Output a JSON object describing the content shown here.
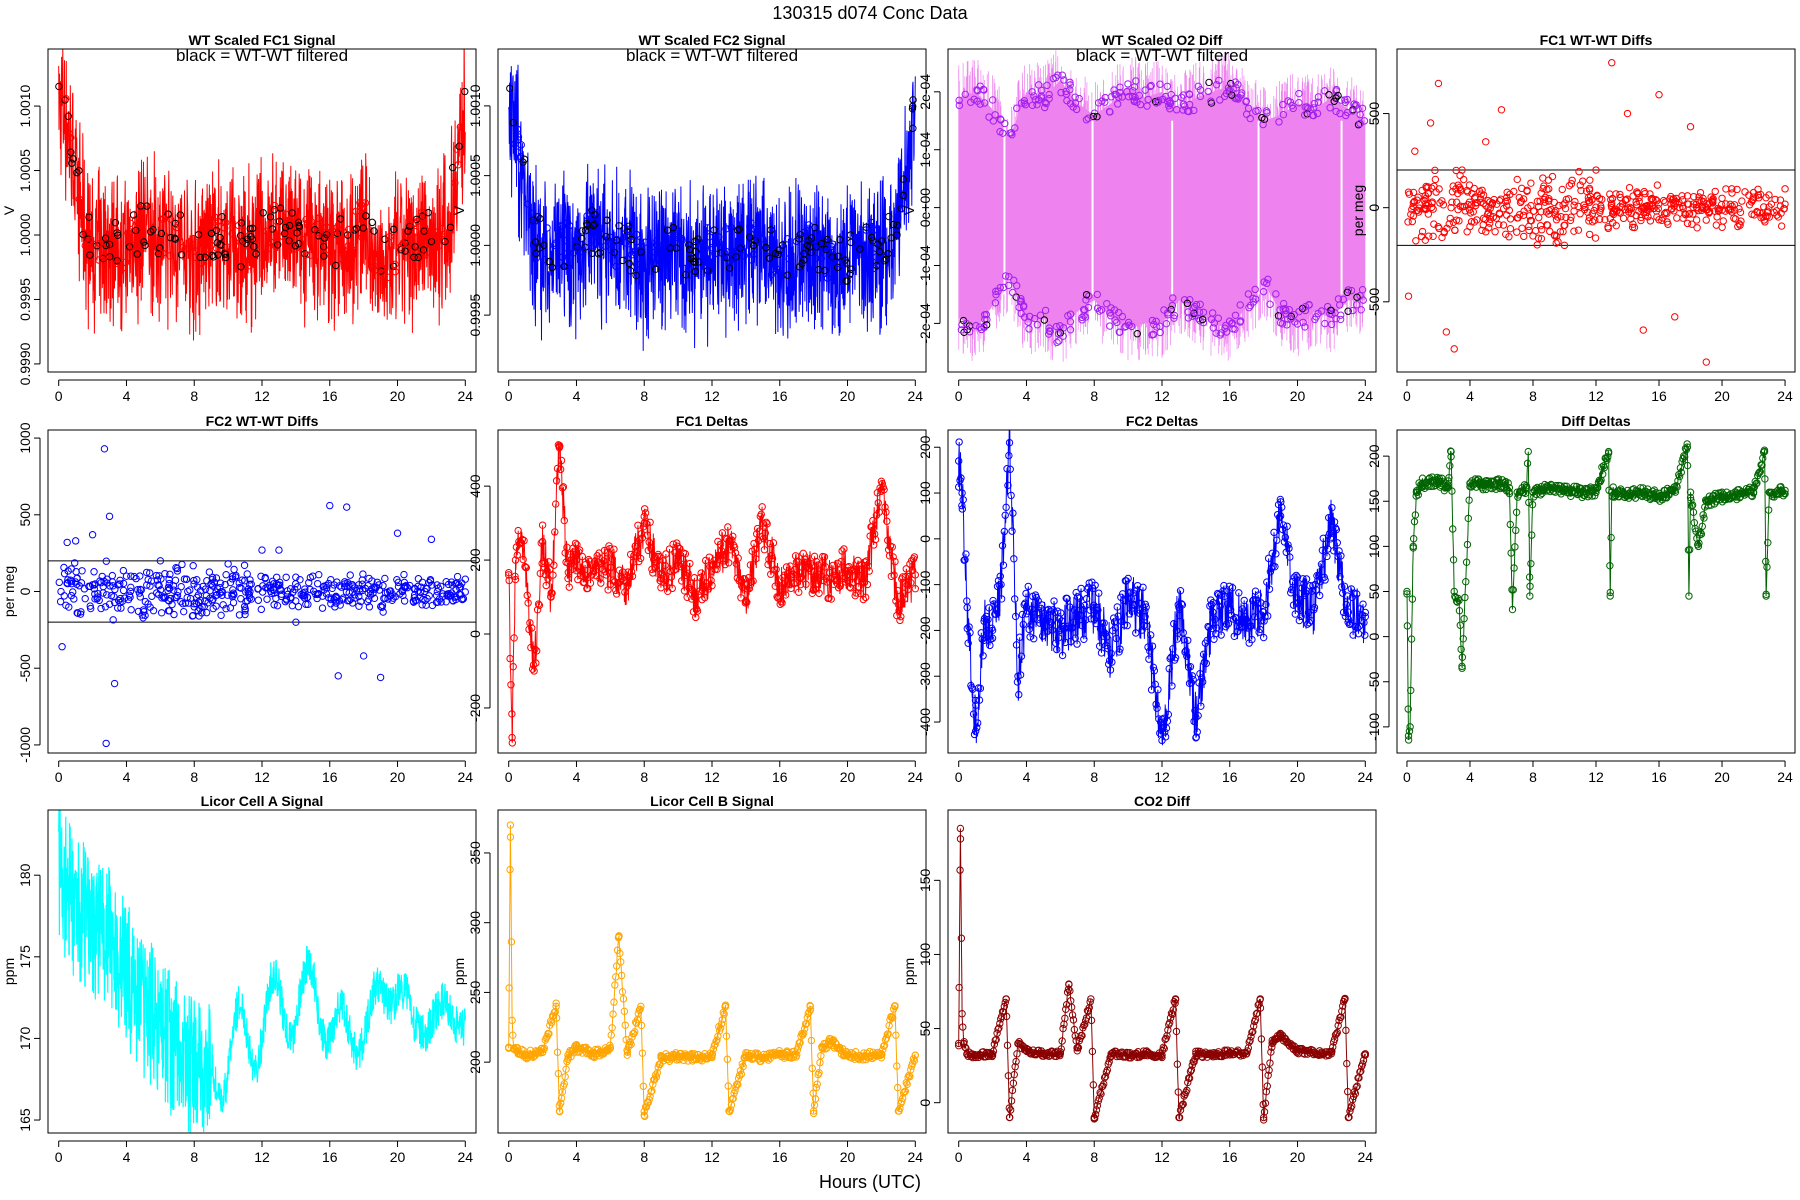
{
  "figure": {
    "title": "130315    d074    Conc Data",
    "xlabel": "Hours (UTC)"
  },
  "chart_data": [
    {
      "id": "wt-scaled-fc1-signal",
      "type": "line",
      "title": "WT Scaled FC1 Signal",
      "annotation": "black = WT-WT filtered",
      "ylabel": "V",
      "color": "#ff0000",
      "overlay_color": "#000000",
      "xlim": [
        0,
        24
      ],
      "ylim": [
        0.999,
        1.00138
      ],
      "xticks": [
        0,
        4,
        8,
        12,
        16,
        20,
        24
      ],
      "yticks": [
        0.999,
        0.9995,
        1.0,
        1.0005,
        1.001
      ],
      "ytick_labels": [
        "0.9990",
        "0.9995",
        "1.0000",
        "1.0005",
        "1.0010"
      ],
      "series": [
        {
          "name": "signal",
          "x": [
            0,
            0.5,
            1,
            1.5,
            2,
            3,
            4,
            5,
            6,
            7,
            8,
            9,
            10,
            11,
            12,
            13,
            14,
            15,
            16,
            17,
            18,
            19,
            20,
            21,
            22,
            23,
            23.5,
            24
          ],
          "values": [
            1.0011,
            1.0009,
            1.0005,
            1.0001,
            0.9999,
            1.0,
            0.9999,
            1.0001,
            1.0,
            1.0,
            0.9999,
            1.0,
            1.0,
            0.9999,
            1.0,
            1.0001,
            1.0,
            1.0,
            0.9999,
            1.0,
            1.0001,
            0.9998,
            0.9999,
            1.0,
            1.0,
            1.0001,
            1.0006,
            1.0011
          ]
        }
      ]
    },
    {
      "id": "wt-scaled-fc2-signal",
      "type": "line",
      "title": "WT Scaled FC2 Signal",
      "annotation": "black = WT-WT filtered",
      "ylabel": "V",
      "color": "#0000ff",
      "overlay_color": "#000000",
      "xlim": [
        0,
        24
      ],
      "ylim": [
        0.99915,
        1.00135
      ],
      "xticks": [
        0,
        4,
        8,
        12,
        16,
        20,
        24
      ],
      "yticks": [
        0.9995,
        1.0,
        1.0005,
        1.001
      ],
      "ytick_labels": [
        "0.9995",
        "1.0000",
        "1.0005",
        "1.0010"
      ],
      "series": [
        {
          "name": "signal",
          "x": [
            0,
            0.5,
            1,
            1.5,
            2,
            3,
            4,
            5,
            6,
            7,
            8,
            9,
            10,
            11,
            12,
            13,
            14,
            15,
            16,
            17,
            18,
            19,
            20,
            21,
            22,
            23,
            23.5,
            24
          ],
          "values": [
            1.001,
            1.0008,
            1.0004,
            1.0001,
            1.0,
            1.0,
            1.0,
            1.0001,
            1.0,
            1.0,
            0.9999,
            1.0,
            1.0,
            0.9999,
            1.0,
            1.0,
            1.0,
            1.0,
            0.9999,
            1.0,
            1.0,
            0.9999,
            0.9999,
            1.0,
            1.0,
            1.0002,
            1.0006,
            1.001
          ]
        }
      ]
    },
    {
      "id": "wt-scaled-o2-diff",
      "type": "line",
      "title": "WT Scaled O2 Diff",
      "annotation": "black = WT-WT filtered",
      "ylabel": "V",
      "color": "#ee82ee",
      "point_color": "#a020f0",
      "overlay_color": "#000000",
      "xlim": [
        0,
        24
      ],
      "ylim": [
        -0.00027,
        0.00026
      ],
      "xticks": [
        0,
        4,
        8,
        12,
        16,
        20,
        24
      ],
      "yticks": [
        -0.0002,
        -0.0001,
        0,
        0.0001,
        0.0002
      ],
      "ytick_labels": [
        "-2e-04",
        "-1e-04",
        "0e+00",
        "1e-04",
        "2e-04"
      ],
      "series": [
        {
          "name": "upper",
          "x": [
            0,
            1,
            2,
            3,
            4,
            5,
            6,
            7,
            8,
            9,
            10,
            11,
            12,
            13,
            14,
            15,
            16,
            17,
            18,
            19,
            20,
            21,
            22,
            23,
            24
          ],
          "values": [
            0.00019,
            0.0002,
            0.00017,
            0.00012,
            0.0002,
            0.00019,
            0.00022,
            0.00018,
            0.00016,
            0.00018,
            0.00021,
            0.00019,
            0.0002,
            0.00017,
            0.00019,
            0.0002,
            0.00021,
            0.00018,
            0.00015,
            0.00016,
            0.00018,
            0.00017,
            0.00019,
            0.00017,
            0.00015
          ]
        },
        {
          "name": "lower",
          "x": [
            0,
            1,
            2,
            3,
            4,
            5,
            6,
            7,
            8,
            9,
            10,
            11,
            12,
            13,
            14,
            15,
            16,
            17,
            18,
            19,
            20,
            21,
            22,
            23,
            24
          ],
          "values": [
            -0.00019,
            -0.00021,
            -0.00017,
            -0.00012,
            -0.0002,
            -0.00019,
            -0.00022,
            -0.00018,
            -0.00016,
            -0.00019,
            -0.00021,
            -0.0002,
            -0.0002,
            -0.00016,
            -0.00018,
            -0.0002,
            -0.00021,
            -0.00017,
            -0.00013,
            -0.00018,
            -0.0002,
            -0.00018,
            -0.00019,
            -0.00016,
            -0.00016
          ]
        }
      ]
    },
    {
      "id": "fc1-wt-wt-diffs",
      "type": "scatter",
      "title": "FC1 WT-WT Diffs",
      "ylabel": "per meg",
      "color": "#ff0000",
      "xlim": [
        0,
        24
      ],
      "ylim": [
        -830,
        800
      ],
      "xticks": [
        0,
        4,
        8,
        12,
        16,
        20,
        24
      ],
      "yticks": [
        -500,
        0,
        500
      ],
      "hlines": [
        200,
        -200
      ],
      "series": [
        {
          "name": "diffs",
          "x": [
            0.1,
            0.5,
            1.5,
            2,
            2.5,
            3,
            3.5,
            4,
            5,
            6,
            7,
            8,
            9,
            10,
            11,
            12,
            13,
            14,
            15,
            16,
            17,
            18,
            19,
            20,
            21,
            22,
            23,
            24,
            13,
            16.5,
            2.8,
            17.8,
            19
          ],
          "values": [
            -470,
            300,
            450,
            660,
            -660,
            -750,
            200,
            -100,
            350,
            520,
            150,
            -150,
            100,
            -200,
            120,
            200,
            770,
            500,
            -650,
            600,
            -580,
            430,
            -820,
            50,
            -100,
            80,
            -50,
            100,
            0,
            -30,
            0,
            20,
            -10
          ]
        }
      ]
    },
    {
      "id": "fc2-wt-wt-diffs",
      "type": "scatter",
      "title": "FC2 WT-WT Diffs",
      "ylabel": "per meg",
      "color": "#0000ff",
      "xlim": [
        0,
        24
      ],
      "ylim": [
        -1000,
        1000
      ],
      "xticks": [
        0,
        4,
        8,
        12,
        16,
        20,
        24
      ],
      "yticks": [
        -1000,
        -500,
        0,
        500,
        1000
      ],
      "hlines": [
        200,
        -200
      ],
      "series": [
        {
          "name": "diffs",
          "x": [
            0.2,
            0.5,
            1,
            2,
            2.7,
            2.8,
            3,
            3.3,
            4,
            5,
            6,
            7,
            8,
            9,
            10,
            11,
            12,
            13,
            14,
            15,
            16,
            16.5,
            17,
            18,
            19,
            20,
            21,
            22,
            23,
            24
          ],
          "values": [
            -360,
            320,
            330,
            370,
            930,
            -990,
            490,
            -600,
            100,
            -120,
            200,
            150,
            -100,
            50,
            180,
            -150,
            270,
            270,
            -200,
            100,
            560,
            -550,
            550,
            -420,
            -560,
            380,
            20,
            340,
            -30,
            80
          ]
        }
      ]
    },
    {
      "id": "fc1-deltas",
      "type": "line",
      "title": "FC1 Deltas",
      "color": "#ff0000",
      "xlim": [
        0,
        24
      ],
      "ylim": [
        -300,
        530
      ],
      "xticks": [
        0,
        4,
        8,
        12,
        16,
        20,
        24
      ],
      "yticks": [
        -200,
        0,
        200,
        400
      ],
      "series": [
        {
          "name": "deltas",
          "x": [
            0,
            0.2,
            0.4,
            0.6,
            1,
            1.5,
            2,
            2.5,
            3,
            3.5,
            4,
            5,
            6,
            7,
            8,
            9,
            10,
            11,
            12,
            13,
            14,
            15,
            16,
            17,
            18,
            19,
            20,
            21,
            22,
            23,
            24
          ],
          "values": [
            160,
            -280,
            200,
            250,
            180,
            -100,
            250,
            100,
            510,
            150,
            200,
            170,
            180,
            130,
            300,
            150,
            200,
            100,
            170,
            250,
            90,
            300,
            130,
            160,
            170,
            150,
            180,
            140,
            390,
            80,
            160
          ]
        }
      ]
    },
    {
      "id": "fc2-deltas",
      "type": "line",
      "title": "FC2 Deltas",
      "color": "#0000ff",
      "xlim": [
        0,
        24
      ],
      "ylim": [
        -450,
        220
      ],
      "xticks": [
        0,
        4,
        8,
        12,
        16,
        20,
        24
      ],
      "yticks": [
        -400,
        -300,
        -200,
        -100,
        0,
        100,
        200
      ],
      "series": [
        {
          "name": "deltas",
          "x": [
            0,
            0.2,
            0.5,
            1,
            1.5,
            2,
            2.5,
            3,
            3.5,
            4,
            5,
            6,
            7,
            8,
            9,
            10,
            11,
            12,
            13,
            14,
            15,
            16,
            17,
            18,
            19,
            20,
            21,
            22,
            23,
            24
          ],
          "values": [
            170,
            100,
            -150,
            -420,
            -180,
            -200,
            -100,
            210,
            -300,
            -150,
            -180,
            -200,
            -170,
            -150,
            -250,
            -130,
            -170,
            -440,
            -150,
            -390,
            -160,
            -150,
            -180,
            -160,
            50,
            -140,
            -150,
            40,
            -160,
            -170
          ]
        }
      ]
    },
    {
      "id": "diff-deltas",
      "type": "line",
      "title": "Diff Deltas",
      "color": "#006400",
      "xlim": [
        0,
        24
      ],
      "ylim": [
        -120,
        220
      ],
      "xticks": [
        0,
        4,
        8,
        12,
        16,
        20,
        24
      ],
      "yticks": [
        -100,
        -50,
        0,
        50,
        100,
        150,
        200
      ],
      "series": [
        {
          "name": "deltas",
          "x": [
            0,
            0.1,
            0.2,
            0.4,
            0.6,
            1,
            2,
            2.6,
            2.8,
            3,
            3.3,
            3.5,
            4,
            5,
            6,
            6.5,
            6.7,
            7,
            7.6,
            7.7,
            7.8,
            8,
            9,
            10,
            11,
            12,
            12.8,
            12.9,
            13,
            14,
            15,
            16,
            17,
            17.8,
            17.9,
            18,
            18.5,
            19,
            20,
            21,
            22,
            22.7,
            22.8,
            23,
            24
          ],
          "values": [
            50,
            -110,
            -100,
            100,
            160,
            170,
            172,
            165,
            205,
            50,
            40,
            -35,
            170,
            168,
            170,
            165,
            30,
            160,
            165,
            205,
            45,
            160,
            165,
            162,
            160,
            162,
            205,
            45,
            160,
            158,
            160,
            155,
            162,
            210,
            45,
            160,
            100,
            150,
            155,
            158,
            160,
            205,
            45,
            160,
            162
          ]
        }
      ]
    },
    {
      "id": "licor-cell-a-signal",
      "type": "line",
      "title": "Licor Cell A Signal",
      "ylabel": "ppm",
      "color": "#00ffff",
      "xlim": [
        0,
        24
      ],
      "ylim": [
        164.7,
        183.5
      ],
      "xticks": [
        0,
        4,
        8,
        12,
        16,
        20,
        24
      ],
      "yticks": [
        165,
        170,
        175,
        180
      ],
      "series": [
        {
          "name": "signal",
          "x": [
            0,
            1,
            2,
            3,
            4,
            5,
            6,
            7,
            8,
            9,
            10,
            11,
            12,
            13,
            14,
            15,
            16,
            17,
            18,
            19,
            20,
            21,
            22,
            23,
            24
          ],
          "values": [
            180,
            178,
            177,
            176,
            174,
            172,
            171,
            169,
            168,
            168,
            169,
            170,
            171,
            172,
            172,
            173,
            171,
            170,
            171,
            172,
            174,
            170,
            172,
            171,
            171.5
          ]
        }
      ]
    },
    {
      "id": "licor-cell-b-signal",
      "type": "line",
      "title": "Licor Cell B Signal",
      "ylabel": "ppm",
      "color": "#ffa500",
      "xlim": [
        0,
        24
      ],
      "ylim": [
        155,
        375
      ],
      "xticks": [
        0,
        4,
        8,
        12,
        16,
        20,
        24
      ],
      "yticks": [
        200,
        250,
        300,
        350
      ],
      "series": [
        {
          "name": "signal",
          "x": [
            0,
            0.1,
            0.2,
            0.3,
            0.5,
            1,
            2,
            2.8,
            3,
            3.5,
            4,
            5,
            6,
            6.5,
            7,
            7.8,
            8,
            9,
            10,
            11,
            12,
            12.8,
            13,
            14,
            15,
            16,
            17,
            17.8,
            18,
            18.5,
            19,
            20,
            21,
            22,
            22.8,
            23,
            24
          ],
          "values": [
            210,
            370,
            230,
            210,
            208,
            205,
            207,
            240,
            165,
            205,
            210,
            206,
            210,
            290,
            205,
            240,
            162,
            203,
            204,
            203,
            205,
            240,
            165,
            205,
            203,
            206,
            205,
            240,
            165,
            210,
            215,
            205,
            204,
            206,
            240,
            165,
            205
          ]
        }
      ]
    },
    {
      "id": "co2-diff",
      "type": "line",
      "title": "CO2 Diff",
      "ylabel": "ppm",
      "color": "#8b0000",
      "xlim": [
        0,
        24
      ],
      "ylim": [
        -15,
        192
      ],
      "xticks": [
        0,
        4,
        8,
        12,
        16,
        20,
        24
      ],
      "yticks": [
        0,
        50,
        100,
        150
      ],
      "series": [
        {
          "name": "diff",
          "x": [
            0,
            0.1,
            0.2,
            0.3,
            0.5,
            1,
            2,
            2.8,
            3,
            3.5,
            4,
            5,
            6,
            6.5,
            7,
            7.8,
            8,
            9,
            10,
            11,
            12,
            12.8,
            13,
            14,
            15,
            16,
            17,
            17.8,
            18,
            18.5,
            19,
            20,
            21,
            22,
            22.8,
            23,
            24
          ],
          "values": [
            40,
            185,
            60,
            40,
            33,
            32,
            33,
            70,
            -10,
            40,
            35,
            33,
            33,
            80,
            35,
            70,
            -10,
            33,
            32,
            33,
            32,
            70,
            -10,
            33,
            32,
            34,
            33,
            70,
            -10,
            40,
            45,
            35,
            34,
            33,
            70,
            -10,
            33
          ]
        }
      ]
    }
  ]
}
